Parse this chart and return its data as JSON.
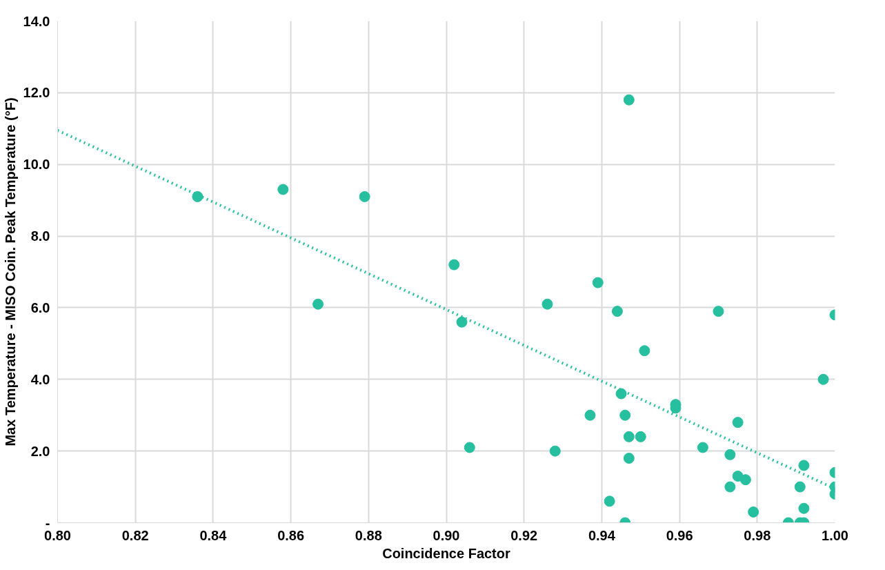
{
  "chart_data": {
    "type": "scatter",
    "xlabel": "Coincidence Factor",
    "ylabel": "Max Temperature - MISO Coin. Peak Temperature (°F)",
    "xlim": [
      0.8,
      1.0
    ],
    "ylim": [
      0,
      14
    ],
    "xticks": [
      {
        "value": 0.8,
        "label": "0.80"
      },
      {
        "value": 0.82,
        "label": "0.82"
      },
      {
        "value": 0.84,
        "label": "0.84"
      },
      {
        "value": 0.86,
        "label": "0.86"
      },
      {
        "value": 0.88,
        "label": "0.88"
      },
      {
        "value": 0.9,
        "label": "0.90"
      },
      {
        "value": 0.92,
        "label": "0.92"
      },
      {
        "value": 0.94,
        "label": "0.94"
      },
      {
        "value": 0.96,
        "label": "0.96"
      },
      {
        "value": 0.98,
        "label": "0.98"
      },
      {
        "value": 1.0,
        "label": "1.00"
      }
    ],
    "yticks": [
      {
        "value": 0,
        "label": "-"
      },
      {
        "value": 2,
        "label": "2.0"
      },
      {
        "value": 4,
        "label": "4.0"
      },
      {
        "value": 6,
        "label": "6.0"
      },
      {
        "value": 8,
        "label": "8.0"
      },
      {
        "value": 10,
        "label": "10.0"
      },
      {
        "value": 12,
        "label": "12.0"
      },
      {
        "value": 14,
        "label": "14.0"
      }
    ],
    "grid": true,
    "marker": "circle",
    "series": [
      {
        "color": "#26bfa0",
        "x": [
          0.836,
          0.858,
          0.867,
          0.879,
          0.902,
          0.904,
          0.906,
          0.926,
          0.928,
          0.937,
          0.939,
          0.942,
          0.944,
          0.945,
          0.947,
          0.946,
          0.947,
          0.947,
          0.946,
          0.95,
          0.951,
          0.959,
          0.959,
          0.966,
          0.97,
          0.973,
          0.973,
          0.975,
          0.975,
          0.977,
          0.979,
          0.988,
          0.991,
          0.991,
          0.992,
          0.992,
          0.992,
          0.997,
          1.0,
          1.0,
          1.0,
          1.0
        ],
        "values": [
          9.1,
          9.3,
          6.1,
          9.1,
          7.2,
          5.6,
          2.1,
          6.1,
          2.0,
          3.0,
          6.7,
          0.6,
          5.9,
          3.6,
          11.8,
          3.0,
          2.4,
          1.8,
          0,
          2.4,
          4.8,
          3.3,
          3.2,
          2.1,
          5.9,
          1.9,
          1.0,
          2.8,
          1.3,
          1.2,
          0.3,
          0,
          1.0,
          0,
          0,
          1.6,
          0.4,
          4.0,
          1.4,
          5.8,
          1.0,
          0.8
        ]
      },
      {
        "type": "line",
        "color": "#26bfa0",
        "line_style": "dotted",
        "marker": "none",
        "x": [
          0.8,
          1.0
        ],
        "values": [
          10.95,
          0.95
        ]
      }
    ]
  }
}
